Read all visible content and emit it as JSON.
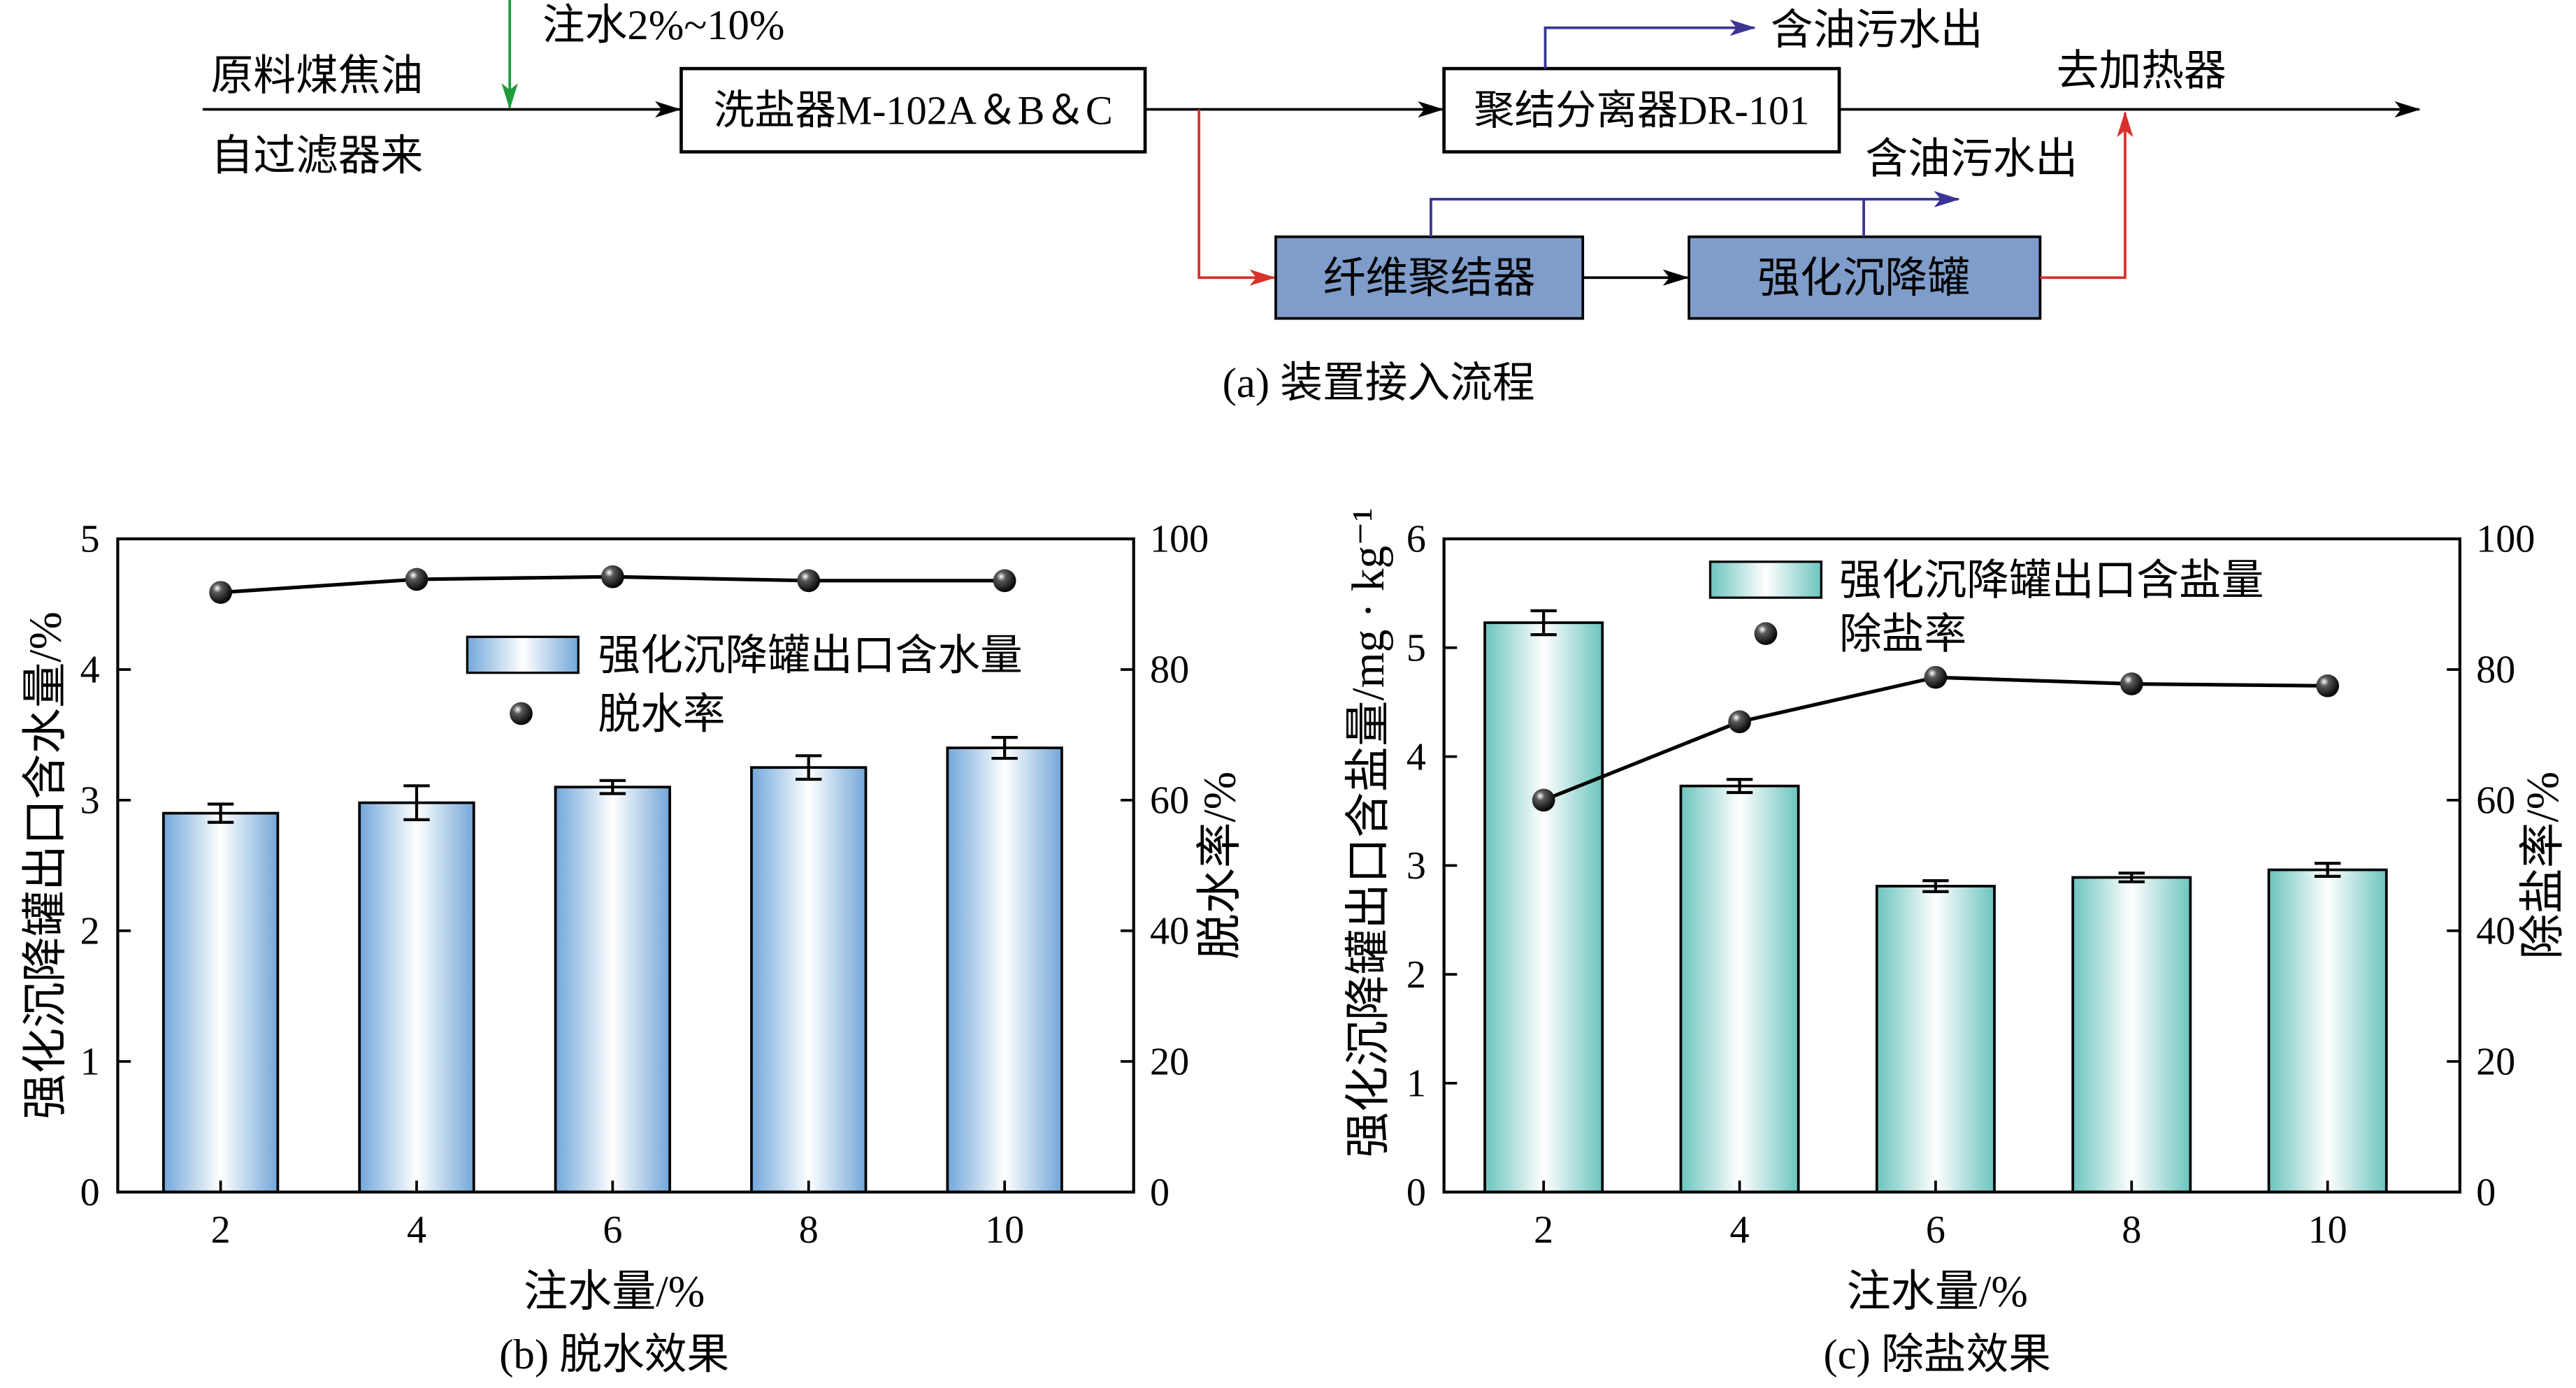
{
  "diagram": {
    "caption": "(a) 装置接入流程",
    "feed_line1": "原料煤焦油",
    "feed_line2": "自过滤器来",
    "water_injection": "注水2%~10%",
    "desalter": "洗盐器M-102A＆B＆C",
    "coalescing_separator": "聚结分离器DR-101",
    "oily_water_out_top": "含油污水出",
    "to_heater": "去加热器",
    "oily_water_out_bypass": "含油污水出",
    "fiber_coalescer": "纤维聚结器",
    "settling_tank": "强化沉降罐",
    "colors": {
      "main_flow": "#000000",
      "water": "#1f9b3b",
      "oily_water": "#3a3592",
      "bypass": "#d8302c",
      "unit_fill": "#7f9dca",
      "unit_text": "#ffffff"
    }
  },
  "chart_data": [
    {
      "type": "bar",
      "caption": "(b) 脱水效果",
      "categories": [
        "2",
        "4",
        "6",
        "8",
        "10"
      ],
      "xlabel": "注水量/%",
      "ylabel": "强化沉降罐出口含水量/%",
      "ylim": [
        0,
        5
      ],
      "yticks": [
        0,
        1,
        2,
        3,
        4,
        5
      ],
      "y2label": "脱水率/%",
      "y2lim": [
        0,
        100
      ],
      "y2ticks": [
        0,
        20,
        40,
        60,
        80,
        100
      ],
      "grid": false,
      "legend": "top-center",
      "series": [
        {
          "name": "强化沉降罐出口含水量",
          "type": "bar",
          "axis": "left",
          "color": "#72a7d9",
          "values": [
            2.9,
            2.98,
            3.1,
            3.25,
            3.4
          ],
          "errors": [
            0.07,
            0.13,
            0.05,
            0.09,
            0.08
          ]
        },
        {
          "name": "脱水率",
          "type": "line",
          "axis": "right",
          "color": "#000000",
          "values": [
            91.8,
            93.8,
            94.2,
            93.6,
            93.6
          ]
        }
      ]
    },
    {
      "type": "bar",
      "caption": "(c) 除盐效果",
      "categories": [
        "2",
        "4",
        "6",
        "8",
        "10"
      ],
      "xlabel": "注水量/%",
      "ylabel": "强化沉降罐出口含盐量/mg · kg⁻¹",
      "ylim": [
        0,
        6
      ],
      "yticks": [
        0,
        1,
        2,
        3,
        4,
        5,
        6
      ],
      "y2label": "除盐率/%",
      "y2lim": [
        0,
        100
      ],
      "y2ticks": [
        0,
        20,
        40,
        60,
        80,
        100
      ],
      "grid": false,
      "legend": "top-center",
      "series": [
        {
          "name": "强化沉降罐出口含盐量",
          "type": "bar",
          "axis": "left",
          "color": "#6cc4be",
          "values": [
            5.23,
            3.73,
            2.81,
            2.89,
            2.96
          ],
          "errors": [
            0.11,
            0.06,
            0.05,
            0.04,
            0.06
          ]
        },
        {
          "name": "除盐率",
          "type": "line",
          "axis": "right",
          "color": "#000000",
          "values": [
            60.0,
            72.0,
            78.8,
            77.8,
            77.5
          ]
        }
      ]
    }
  ]
}
